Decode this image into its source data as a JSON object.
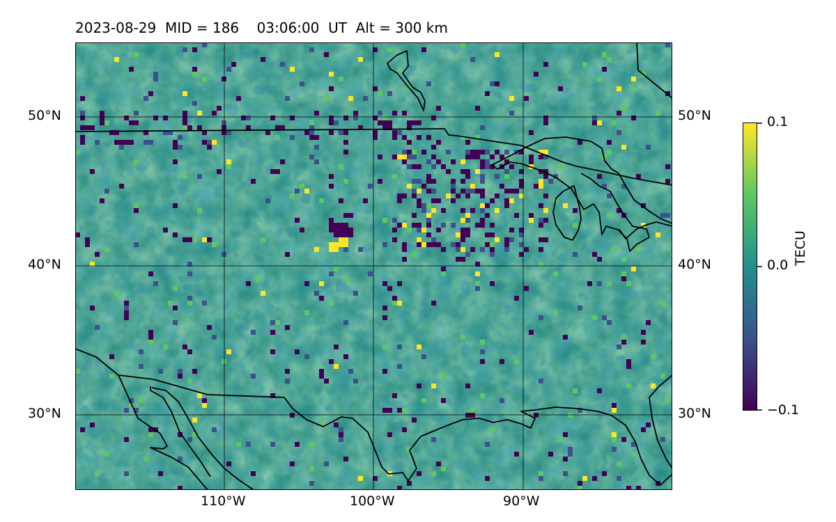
{
  "title": "2023-08-29  MID = 186    03:06:00  UT  Alt = 300 km",
  "map": {
    "lat_labels": [
      "50°N",
      "40°N",
      "30°N"
    ],
    "lon_labels": [
      "110°W",
      "100°W",
      "90°W"
    ],
    "lat_range": [
      25,
      55
    ],
    "lon_range": [
      -120,
      -80
    ]
  },
  "colorbar": {
    "label": "TECU",
    "ticks": [
      "0.1",
      "0.0",
      "−0.1"
    ],
    "range": [
      -0.1,
      0.1
    ],
    "colormap": "viridis",
    "colors": [
      "#440154",
      "#3b528b",
      "#21908c",
      "#5dc863",
      "#fde725"
    ]
  }
}
